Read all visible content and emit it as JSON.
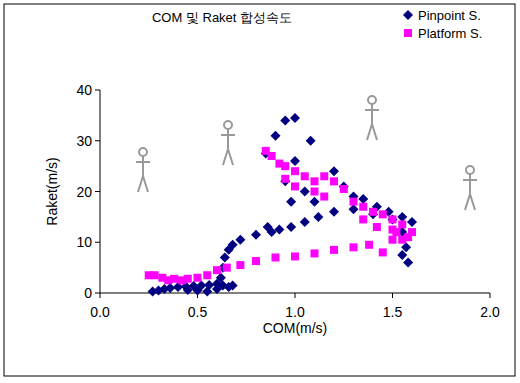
{
  "chart_data": {
    "type": "scatter",
    "title": "COM 및 Raket 합성속도",
    "x_label": "COM(m/s)",
    "y_label": "Raket(m/s)",
    "xlim": [
      0,
      2
    ],
    "ylim": [
      0,
      40
    ],
    "xticks": [
      {
        "value": 0,
        "label": "0.0"
      },
      {
        "value": 0.5,
        "label": "0.5"
      },
      {
        "value": 1,
        "label": "1.0"
      },
      {
        "value": 1.5,
        "label": "1.5"
      },
      {
        "value": 2,
        "label": "2.0"
      }
    ],
    "yticks": [
      0,
      10,
      20,
      30,
      40
    ],
    "grid": false,
    "legend": "top-right",
    "series": [
      {
        "name": "Pinpoint S.",
        "color": "#000080",
        "marker": "diamond",
        "x": [
          0.27,
          0.3,
          0.33,
          0.36,
          0.4,
          0.44,
          0.48,
          0.52,
          0.56,
          0.6,
          0.63,
          0.66,
          0.68,
          0.5,
          0.55,
          0.45,
          0.6,
          0.62,
          0.63,
          0.64,
          0.66,
          0.68,
          0.72,
          0.8,
          0.86,
          0.88,
          0.92,
          0.98,
          1.05,
          1.12,
          1.2,
          1.3,
          1.4,
          1.5,
          1.55,
          1.57,
          1.58,
          1.55,
          0.85,
          0.9,
          0.95,
          1.0,
          1.08,
          1.0,
          0.95,
          1.05,
          1.1,
          0.98,
          1.2,
          1.25,
          1.3,
          1.35,
          1.42,
          1.48,
          1.55,
          1.6
        ],
        "values": [
          0.3,
          0.5,
          0.8,
          1.0,
          1.2,
          1.3,
          1.4,
          1.5,
          1.6,
          1.8,
          1.5,
          1.2,
          1.5,
          0.5,
          0.3,
          0.6,
          0.8,
          3,
          5,
          7,
          8.5,
          9.5,
          10.5,
          11.5,
          13,
          12,
          12.5,
          13,
          14,
          15,
          16,
          16.5,
          15.5,
          14.5,
          12,
          9,
          6,
          7.5,
          27.5,
          31,
          34,
          34.5,
          30,
          26,
          22,
          20,
          18,
          18,
          24,
          21,
          19,
          18.5,
          17,
          16,
          15,
          14
        ]
      },
      {
        "name": "Platform S.",
        "color": "#ff00ff",
        "marker": "square",
        "x": [
          0.25,
          0.28,
          0.32,
          0.35,
          0.38,
          0.42,
          0.45,
          0.5,
          0.55,
          0.6,
          0.65,
          0.72,
          0.8,
          0.9,
          1.0,
          1.1,
          1.2,
          1.3,
          1.38,
          1.45,
          1.5,
          1.52,
          1.55,
          1.58,
          1.6,
          0.85,
          0.88,
          0.92,
          0.95,
          1.0,
          1.05,
          0.95,
          1.0,
          1.1,
          1.15,
          1.2,
          1.1,
          1.15,
          1.25,
          1.3,
          1.35,
          1.4,
          1.45,
          1.5,
          1.55,
          1.42,
          1.35,
          1.5
        ],
        "values": [
          3.5,
          3.5,
          3,
          2.5,
          2.8,
          2.5,
          2.8,
          3,
          3.5,
          4.5,
          5,
          5.5,
          6.3,
          7,
          7.2,
          7.8,
          8.5,
          9,
          9.5,
          8,
          10.5,
          12,
          10.5,
          11,
          12,
          28,
          27,
          25.5,
          25,
          24,
          23,
          22.5,
          21,
          22,
          23,
          22,
          20,
          19,
          20.5,
          18,
          17,
          16,
          15.5,
          14.5,
          13.5,
          13,
          14.5,
          12.5
        ]
      }
    ]
  }
}
